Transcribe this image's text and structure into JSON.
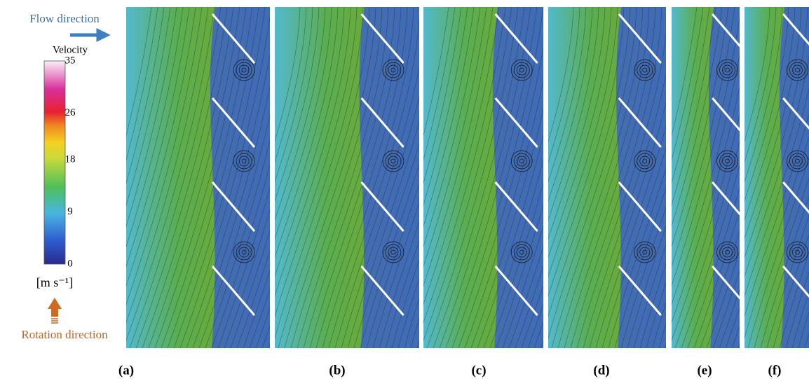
{
  "flow_label": "Flow direction",
  "rotation_label": "Rotation direction",
  "colorbar": {
    "title": "Velocity",
    "range": [
      0,
      35
    ],
    "ticks": [
      0,
      9,
      18,
      26,
      35
    ],
    "unit": "[m s⁻¹]"
  },
  "panels": [
    {
      "label": "(a)"
    },
    {
      "label": "(b)"
    },
    {
      "label": "(c)"
    },
    {
      "label": "(d)"
    },
    {
      "label": "(e)"
    },
    {
      "label": "(f)"
    }
  ]
}
